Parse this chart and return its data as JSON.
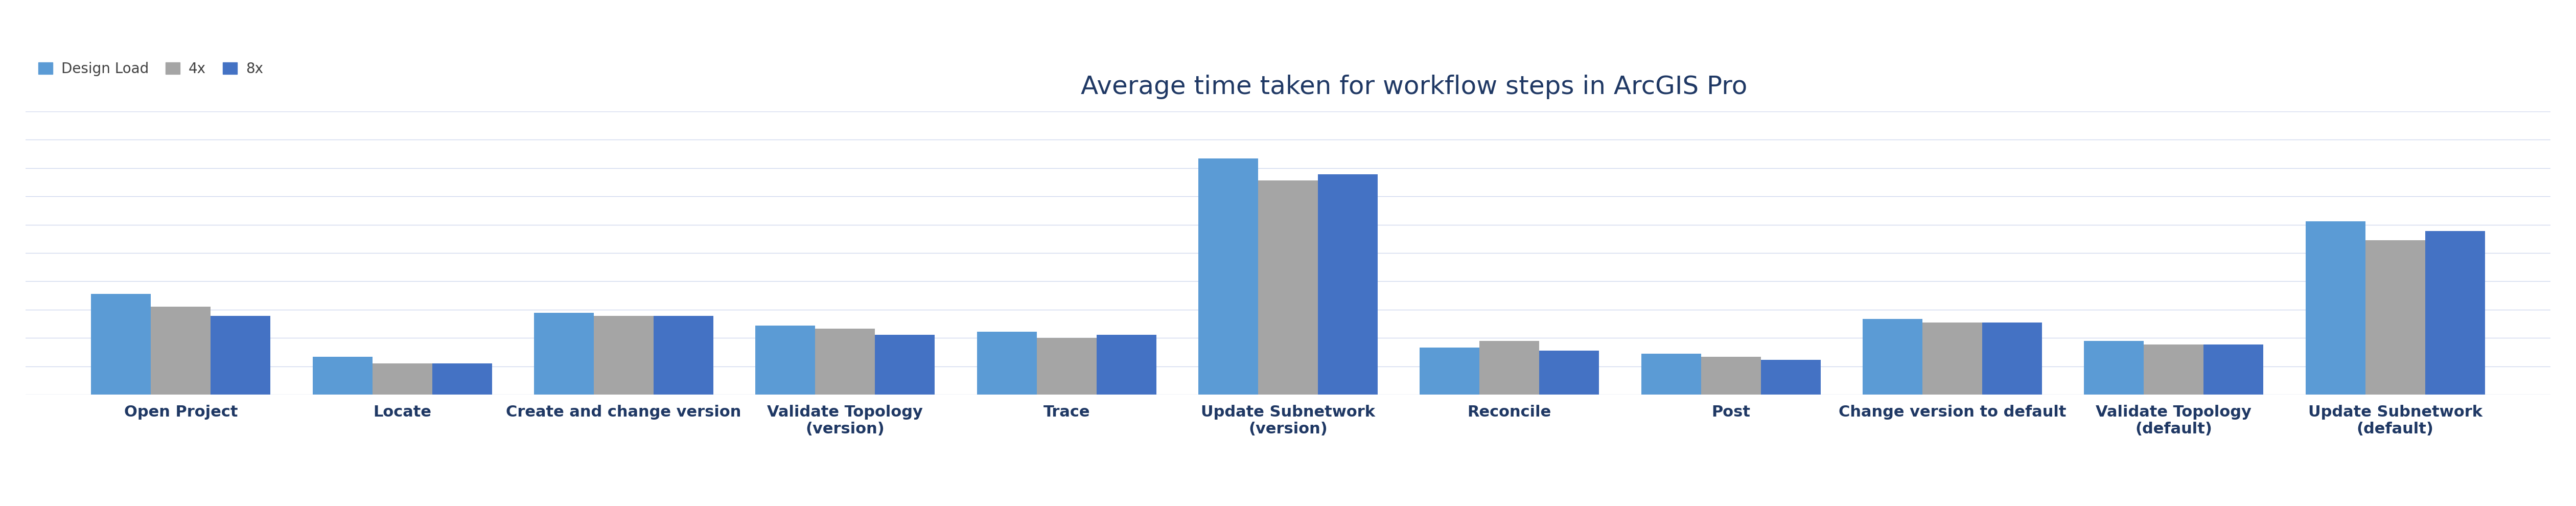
{
  "title": "Average time taken for workflow steps in ArcGIS Pro",
  "categories": [
    "Open Project",
    "Locate",
    "Create and change version",
    "Validate Topology\n(version)",
    "Trace",
    "Update Subnetwork\n(version)",
    "Reconcile",
    "Post",
    "Change version to default",
    "Validate Topology\n(default)",
    "Update Subnetwork\n(default)"
  ],
  "series": [
    "Design Load",
    "4x",
    "8x"
  ],
  "colors": [
    "#5B9BD5",
    "#A5A5A5",
    "#4472C4"
  ],
  "values": {
    "Design Load": [
      32,
      12,
      26,
      22,
      20,
      75,
      15,
      13,
      24,
      17,
      55
    ],
    "4x": [
      28,
      10,
      25,
      21,
      18,
      68,
      17,
      12,
      23,
      16,
      49
    ],
    "8x": [
      25,
      10,
      25,
      19,
      19,
      70,
      14,
      11,
      23,
      16,
      52
    ]
  },
  "background_color": "#FFFFFF",
  "grid_color": "#D0D8EE",
  "title_color": "#1F3864",
  "label_color": "#1F3864",
  "legend_color": "#404040",
  "bar_width": 0.27,
  "title_fontsize": 36,
  "label_fontsize": 22,
  "legend_fontsize": 20,
  "ylim": [
    0,
    90
  ],
  "n_gridlines": 10
}
